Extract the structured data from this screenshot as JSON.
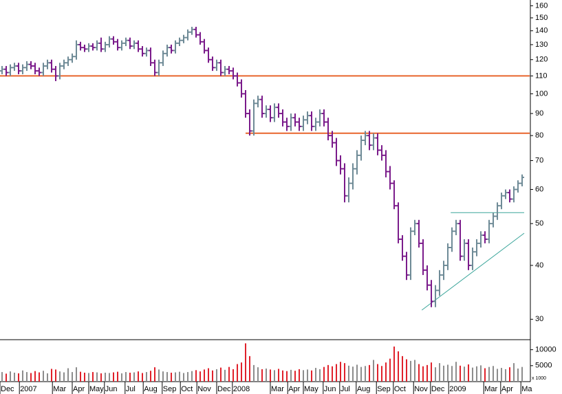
{
  "chart_data": {
    "type": "ohlc",
    "log_scale": true,
    "up_color": "#6e8a96",
    "down_color": "#7a1a8a",
    "volume_up_color": "#8c8c8c",
    "volume_down_color": "#e0202a",
    "x": [
      0,
      1,
      2,
      3,
      4,
      5,
      6,
      7,
      8,
      9,
      10,
      11,
      12,
      13,
      14,
      15,
      16,
      17,
      18,
      19,
      20,
      21,
      22,
      23,
      24,
      25,
      26,
      27,
      28,
      29,
      30,
      31,
      32,
      33,
      34,
      35,
      36,
      37,
      38,
      39,
      40,
      41,
      42,
      43,
      44,
      45,
      46,
      47,
      48,
      49,
      50,
      51,
      52,
      53,
      54,
      55,
      56,
      57,
      58,
      59,
      60,
      61,
      62,
      63,
      64,
      65,
      66,
      67,
      68,
      69,
      70,
      71,
      72,
      73,
      74,
      75,
      76,
      77,
      78,
      79,
      80,
      81,
      82,
      83,
      84,
      85,
      86,
      87,
      88,
      89,
      90,
      91,
      92,
      93,
      94,
      95,
      96,
      97,
      98,
      99,
      100,
      101,
      102,
      103,
      104,
      105,
      106,
      107,
      108,
      109,
      110,
      111,
      112,
      113,
      114,
      115,
      116,
      117,
      118,
      119,
      120,
      121,
      122,
      123,
      124,
      125,
      126
    ],
    "open": [
      113,
      114,
      112,
      115,
      116,
      113,
      115,
      117,
      116,
      113,
      112,
      116,
      118,
      114,
      110,
      116,
      118,
      120,
      122,
      130,
      128,
      127,
      129,
      128,
      131,
      127,
      130,
      134,
      132,
      128,
      131,
      133,
      129,
      131,
      127,
      124,
      126,
      118,
      112,
      118,
      124,
      128,
      126,
      131,
      133,
      135,
      139,
      141,
      137,
      132,
      126,
      120,
      115,
      118,
      112,
      114,
      113,
      110,
      106,
      100,
      90,
      82,
      95,
      97,
      90,
      92,
      88,
      93,
      90,
      86,
      84,
      88,
      86,
      84,
      87,
      89,
      84,
      86,
      90,
      86,
      80,
      77,
      70,
      67,
      58,
      62,
      67,
      72,
      78,
      80,
      76,
      79,
      74,
      72,
      66,
      62,
      55,
      46,
      42,
      38,
      48,
      50,
      45,
      39,
      36,
      33,
      35,
      38,
      40,
      44,
      48,
      50,
      42,
      45,
      40,
      43,
      45,
      47,
      46,
      50,
      52,
      55,
      58,
      59,
      57,
      60,
      62
    ],
    "high": [
      116,
      116,
      117,
      118,
      118,
      117,
      119,
      119,
      118,
      115,
      118,
      120,
      120,
      116,
      118,
      120,
      122,
      124,
      133,
      132,
      130,
      131,
      131,
      133,
      135,
      132,
      136,
      136,
      134,
      133,
      135,
      135,
      133,
      133,
      129,
      128,
      128,
      120,
      120,
      126,
      130,
      130,
      133,
      135,
      137,
      141,
      143,
      143,
      139,
      134,
      128,
      122,
      120,
      120,
      116,
      116,
      115,
      112,
      108,
      102,
      92,
      97,
      99,
      99,
      94,
      94,
      95,
      95,
      92,
      88,
      90,
      90,
      88,
      89,
      91,
      91,
      88,
      92,
      92,
      88,
      82,
      79,
      72,
      69,
      64,
      69,
      74,
      80,
      82,
      82,
      81,
      81,
      76,
      74,
      68,
      63,
      56,
      47,
      43,
      49,
      51,
      51,
      46,
      40,
      37,
      36,
      39,
      41,
      45,
      49,
      51,
      51,
      46,
      46,
      44,
      46,
      48,
      48,
      51,
      53,
      56,
      59,
      60,
      60,
      61,
      63,
      65
    ],
    "low": [
      111,
      110,
      110,
      113,
      111,
      111,
      113,
      114,
      111,
      110,
      110,
      114,
      112,
      107,
      108,
      114,
      116,
      118,
      120,
      126,
      125,
      125,
      126,
      126,
      125,
      125,
      128,
      130,
      126,
      126,
      129,
      127,
      127,
      125,
      122,
      122,
      116,
      110,
      110,
      116,
      122,
      124,
      124,
      129,
      131,
      133,
      137,
      135,
      130,
      124,
      118,
      113,
      113,
      110,
      110,
      111,
      108,
      104,
      98,
      88,
      80,
      80,
      93,
      88,
      88,
      86,
      86,
      88,
      84,
      82,
      82,
      84,
      82,
      82,
      85,
      82,
      82,
      84,
      84,
      78,
      75,
      68,
      65,
      56,
      56,
      60,
      65,
      70,
      76,
      74,
      74,
      72,
      70,
      64,
      60,
      54,
      45,
      41,
      37,
      37,
      47,
      44,
      38,
      35,
      32,
      32,
      34,
      37,
      39,
      43,
      47,
      41,
      41,
      39,
      39,
      42,
      44,
      45,
      45,
      49,
      51,
      54,
      57,
      56,
      56,
      59,
      61
    ],
    "close": [
      114,
      112,
      115,
      116,
      113,
      115,
      117,
      116,
      113,
      112,
      116,
      118,
      114,
      110,
      116,
      118,
      120,
      122,
      130,
      128,
      127,
      129,
      128,
      131,
      127,
      130,
      134,
      132,
      128,
      131,
      133,
      129,
      131,
      127,
      124,
      126,
      118,
      112,
      118,
      124,
      128,
      126,
      131,
      133,
      135,
      139,
      141,
      137,
      132,
      126,
      120,
      115,
      118,
      112,
      114,
      113,
      110,
      106,
      100,
      90,
      82,
      95,
      97,
      90,
      92,
      88,
      93,
      90,
      86,
      84,
      88,
      86,
      84,
      87,
      89,
      84,
      86,
      90,
      86,
      80,
      77,
      70,
      67,
      58,
      62,
      67,
      72,
      78,
      80,
      76,
      79,
      74,
      72,
      66,
      62,
      55,
      46,
      42,
      38,
      48,
      50,
      45,
      39,
      36,
      33,
      35,
      38,
      40,
      44,
      48,
      50,
      42,
      45,
      40,
      43,
      45,
      47,
      46,
      50,
      52,
      55,
      58,
      59,
      57,
      60,
      62,
      64
    ],
    "xlim": [
      -0.5,
      127.83
    ],
    "ylim": [
      27,
      165
    ],
    "yticks": [
      30,
      40,
      50,
      60,
      70,
      80,
      90,
      100,
      110,
      120,
      130,
      140,
      150,
      160
    ],
    "xticks": [
      {
        "value": -0.5,
        "label": "Dec"
      },
      {
        "value": 4.2,
        "label": "2007"
      },
      {
        "value": 12.2,
        "label": "Mar"
      },
      {
        "value": 17,
        "label": "Apr"
      },
      {
        "value": 21,
        "label": "May"
      },
      {
        "value": 24.8,
        "label": "Jun"
      },
      {
        "value": 29.8,
        "label": "Jul"
      },
      {
        "value": 34.2,
        "label": "Aug"
      },
      {
        "value": 38.8,
        "label": "Sep"
      },
      {
        "value": 43.2,
        "label": "Oct"
      },
      {
        "value": 47.2,
        "label": "Nov"
      },
      {
        "value": 52,
        "label": "Dec"
      },
      {
        "value": 55.8,
        "label": "2008"
      },
      {
        "value": 65,
        "label": "Mar"
      },
      {
        "value": 69.2,
        "label": "Apr"
      },
      {
        "value": 73,
        "label": "May"
      },
      {
        "value": 77.8,
        "label": "Jun"
      },
      {
        "value": 81.8,
        "label": "Jul"
      },
      {
        "value": 85.8,
        "label": "Aug"
      },
      {
        "value": 90.7,
        "label": "Sep"
      },
      {
        "value": 94.8,
        "label": "Oct"
      },
      {
        "value": 99.7,
        "label": "Nov"
      },
      {
        "value": 103.8,
        "label": "Dec"
      },
      {
        "value": 108.2,
        "label": "2009"
      },
      {
        "value": 116.7,
        "label": "Mar"
      },
      {
        "value": 120.8,
        "label": "Apr"
      },
      {
        "value": 125.7,
        "label": "Ma"
      }
    ],
    "lines": [
      {
        "x": [
          -0.5,
          127.83
        ],
        "y": [
          110,
          110
        ],
        "color": "#e8642c"
      },
      {
        "x": [
          59,
          127.83
        ],
        "y": [
          81,
          81
        ],
        "color": "#e8642c"
      },
      {
        "x": [
          108.7,
          126.5
        ],
        "y": [
          53,
          53
        ],
        "color": "#3aa59a"
      },
      {
        "x": [
          101.7,
          126.5
        ],
        "y": [
          31.5,
          47.5
        ],
        "color": "#3aa59a"
      }
    ],
    "volume": {
      "unit_label": "x 1000",
      "ylim": [
        0,
        12500
      ],
      "yticks": [
        5000,
        10000
      ],
      "values": [
        3000,
        2500,
        3200,
        2800,
        2600,
        3500,
        3000,
        2700,
        3300,
        2900,
        3400,
        2600,
        4000,
        3800,
        3200,
        2900,
        4200,
        3000,
        4500,
        3100,
        2800,
        2700,
        3000,
        2900,
        2600,
        2800,
        2700,
        2900,
        3100,
        2600,
        3000,
        2800,
        2900,
        3200,
        2700,
        3000,
        3400,
        4500,
        3800,
        3200,
        3000,
        2800,
        2900,
        3100,
        2700,
        3000,
        3300,
        3600,
        3200,
        3800,
        4200,
        3500,
        3900,
        4400,
        3700,
        4600,
        3900,
        5500,
        6000,
        12000,
        8000,
        5200,
        4500,
        3900,
        4100,
        3800,
        3600,
        4000,
        3500,
        3300,
        3700,
        3400,
        3900,
        3600,
        3800,
        3500,
        4300,
        3900,
        4600,
        5200,
        4800,
        5500,
        6200,
        5800,
        5000,
        4700,
        5300,
        4600,
        4900,
        5200,
        6800,
        5500,
        4900,
        6000,
        7200,
        11000,
        9500,
        8000,
        7000,
        6500,
        6800,
        5500,
        4800,
        5200,
        6000,
        4500,
        5800,
        5000,
        5300,
        4900,
        6200,
        5000,
        4700,
        5400,
        4400,
        4800,
        5100,
        4200,
        4600,
        4900,
        4000,
        4300,
        3900,
        4500,
        5800,
        4100,
        4600
      ]
    }
  }
}
